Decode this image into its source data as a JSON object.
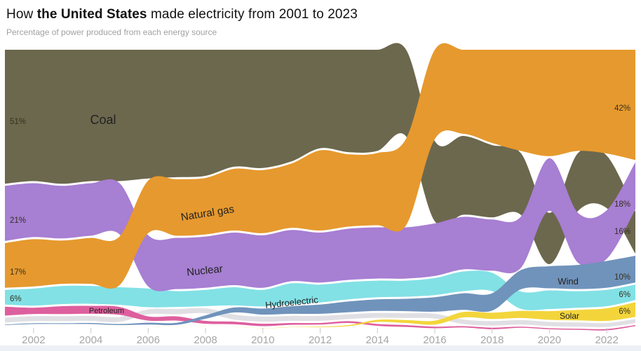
{
  "header": {
    "title_prefix": "How ",
    "title_bold": "the United States",
    "title_suffix": " made electricity from 2001 to 2023",
    "subtitle": "Percentage of power produced from each energy source"
  },
  "chart_data": {
    "type": "area",
    "variant": "ranked-stream-bump",
    "title": "How the United States made electricity from 2001 to 2023",
    "subtitle": "Percentage of power produced from each energy source",
    "unit": "percent of power produced",
    "x": [
      2001,
      2002,
      2003,
      2004,
      2005,
      2006,
      2007,
      2008,
      2009,
      2010,
      2011,
      2012,
      2013,
      2014,
      2015,
      2016,
      2017,
      2018,
      2019,
      2020,
      2021,
      2022,
      2023
    ],
    "x_tick_labels": [
      "2002",
      "2004",
      "2006",
      "2008",
      "2010",
      "2012",
      "2014",
      "2016",
      "2018",
      "2020",
      "2022"
    ],
    "xlim": [
      2001,
      2023
    ],
    "grid": false,
    "legend": "labels-on-bands",
    "series": [
      {
        "name": "Coal",
        "color": "#6C684E",
        "values": [
          51,
          50,
          51,
          50,
          50,
          49,
          48.5,
          48,
          44.5,
          45,
          42.5,
          37.5,
          39,
          38.5,
          33,
          30.5,
          30,
          27.5,
          23.5,
          19.5,
          22,
          20,
          16
        ],
        "start_label": "51%",
        "end_label": "16%"
      },
      {
        "name": "Natural gas",
        "color": "#E6992E",
        "values": [
          17,
          18,
          16.5,
          17.5,
          18.5,
          20,
          21.5,
          21.5,
          23.5,
          24,
          24.5,
          30.5,
          27.5,
          27.5,
          33,
          34,
          32,
          35.5,
          38.5,
          40.5,
          38.5,
          39.5,
          42
        ],
        "start_label": "17%",
        "end_label": "42%"
      },
      {
        "name": "Nuclear",
        "color": "#A77FD3",
        "values": [
          21,
          20.5,
          20,
          20,
          19.5,
          19.5,
          19.5,
          19.5,
          20,
          20,
          19.5,
          19,
          19.5,
          19.5,
          19.5,
          20,
          20,
          19.5,
          19.5,
          20,
          19,
          18.5,
          18
        ],
        "start_label": "21%",
        "end_label": "18%"
      },
      {
        "name": "Hydroelectric",
        "color": "#82E1E5",
        "values": [
          5.6,
          6.5,
          6.9,
          6.8,
          6.7,
          7.1,
          6,
          6.2,
          6.9,
          6.3,
          7.9,
          6.8,
          6.6,
          6.3,
          6.1,
          6.5,
          7.5,
          7,
          6.6,
          7.1,
          6.3,
          6.2,
          5.9
        ],
        "start_label": "6%",
        "end_label": "6%"
      },
      {
        "name": "Wind",
        "color": "#7093BB",
        "values": [
          0.2,
          0.3,
          0.3,
          0.4,
          0.4,
          0.7,
          0.8,
          1.3,
          1.9,
          2.3,
          2.9,
          3.5,
          4.1,
          4.4,
          4.7,
          5.5,
          6.3,
          6.6,
          7.3,
          8.4,
          9.2,
          10.2,
          10.2
        ],
        "end_label": "10%"
      },
      {
        "name": "Solar",
        "color": "#F3D53B",
        "values": [
          0.01,
          0.01,
          0.01,
          0.01,
          0.01,
          0.01,
          0.01,
          0.02,
          0.03,
          0.05,
          0.1,
          0.2,
          0.4,
          0.8,
          1.1,
          1.5,
          2.1,
          2.4,
          2.7,
          3.3,
          4,
          4.8,
          5.6
        ],
        "end_label": "6%"
      },
      {
        "name": "Petroleum",
        "color": "#DE5F9E",
        "values": [
          3.4,
          2.4,
          3,
          3,
          3,
          1.6,
          1.6,
          1.1,
          1,
          0.9,
          0.7,
          0.6,
          0.7,
          0.7,
          0.7,
          0.6,
          0.5,
          0.6,
          0.4,
          0.4,
          0.4,
          0.5,
          0.4
        ]
      },
      {
        "name": "Other",
        "color": "#E0E0E4",
        "label_visible": false,
        "values": [
          1.8,
          1.9,
          1.9,
          1.9,
          1.9,
          1.9,
          2,
          1.9,
          1.9,
          1.9,
          1.9,
          1.9,
          1.8,
          1.8,
          1.8,
          1.8,
          1.7,
          1.7,
          1.7,
          1.6,
          1.6,
          1.5,
          1.5
        ]
      }
    ],
    "left_value_labels": [
      "51%",
      "21%",
      "17%",
      "6%"
    ],
    "right_value_labels": [
      "42%",
      "18%",
      "16%",
      "10%",
      "6%",
      "6%"
    ]
  }
}
